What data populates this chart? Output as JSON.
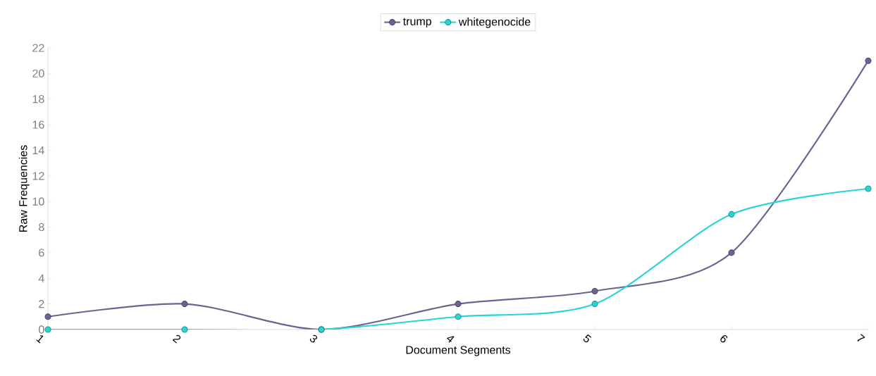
{
  "chart_data": {
    "type": "line",
    "xlabel": "Document Segments",
    "ylabel": "Raw Frequencies",
    "x": [
      1,
      2,
      3,
      4,
      5,
      6,
      7
    ],
    "series": [
      {
        "name": "trump",
        "color": "#6b6394",
        "values": [
          1,
          2,
          0,
          2,
          3,
          6,
          21
        ]
      },
      {
        "name": "whitegenocide",
        "color": "#2ad4d4",
        "values": [
          0,
          0,
          0,
          1,
          2,
          9,
          11
        ]
      }
    ],
    "xlim": [
      1,
      7
    ],
    "xticks": [
      1,
      2,
      3,
      4,
      5,
      6,
      7
    ],
    "ylim": [
      0,
      22
    ],
    "yticks": [
      0,
      2,
      4,
      6,
      8,
      10,
      12,
      14,
      16,
      18,
      20,
      22
    ],
    "grid": false,
    "legend": "top",
    "marker": "circle",
    "line_style": "solid"
  }
}
